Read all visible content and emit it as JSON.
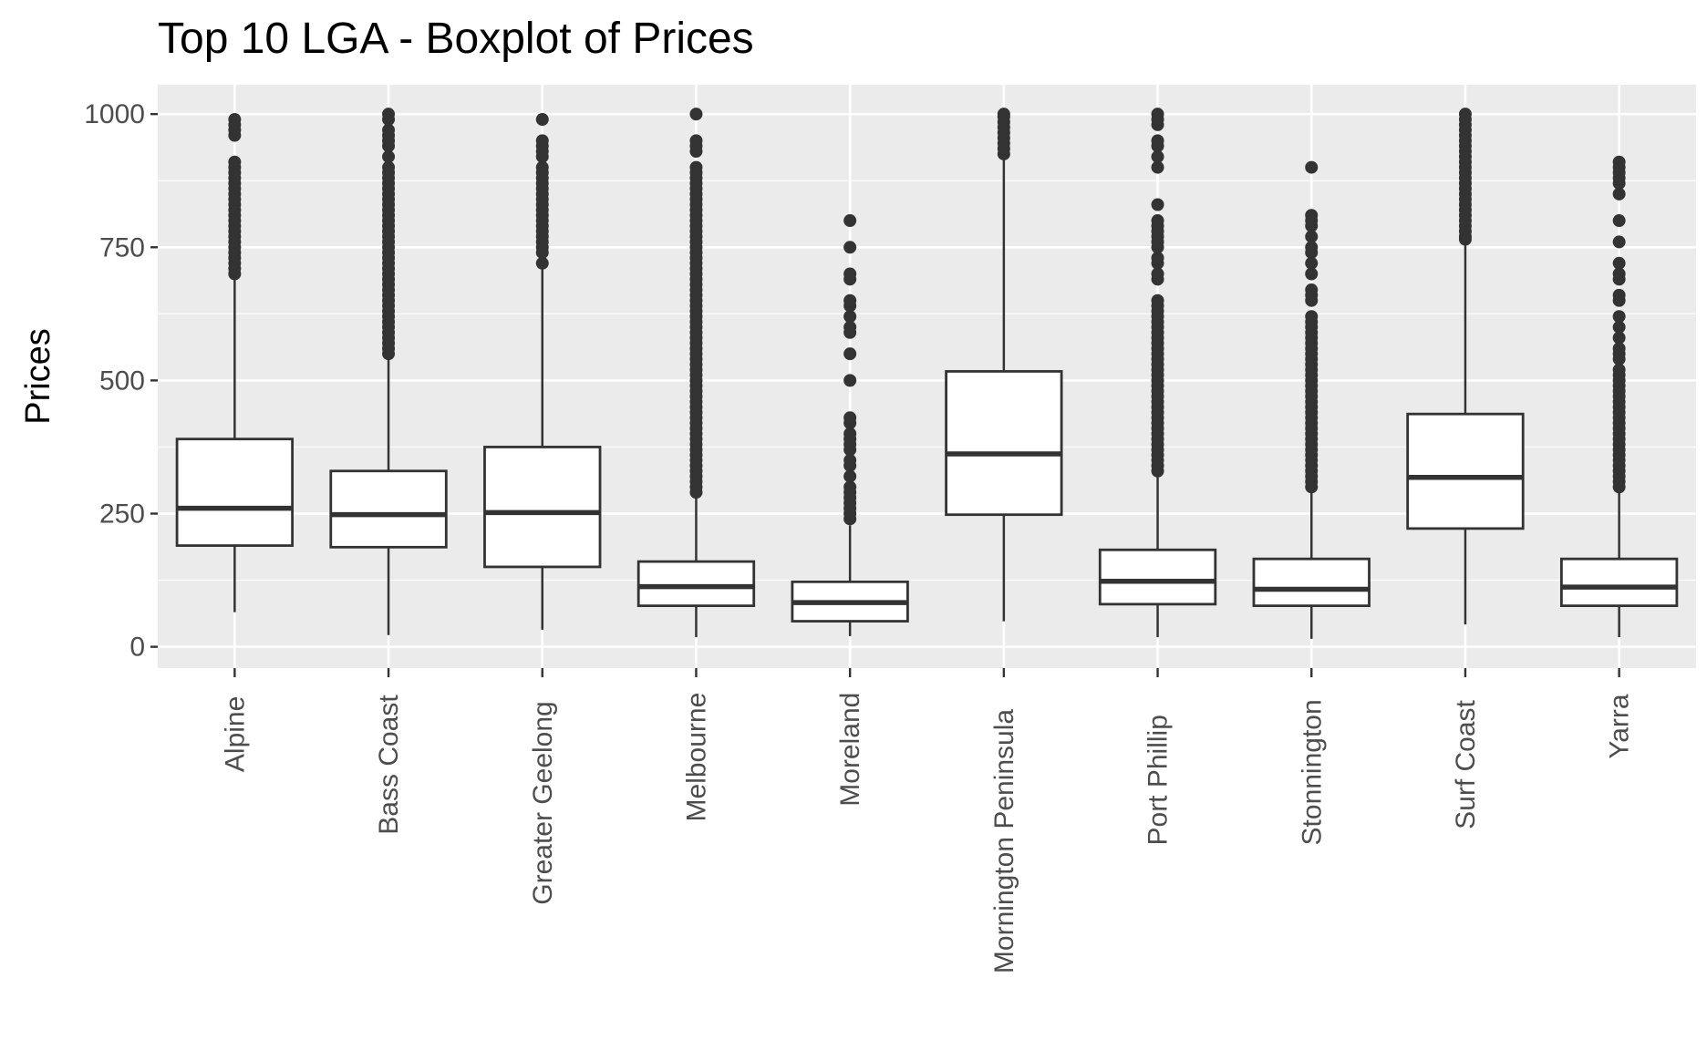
{
  "chart_data": {
    "type": "boxplot",
    "title": "Top 10 LGA - Boxplot of Prices",
    "xlabel": "",
    "ylabel": "Prices",
    "ylim": [
      -40,
      1055
    ],
    "yticks": [
      0,
      250,
      500,
      750,
      1000
    ],
    "ytick_labels": [
      "0",
      "250",
      "500",
      "750",
      "1000"
    ],
    "grid": true,
    "legend": "none",
    "colors": {
      "panel_background": "#ebebeb",
      "grid_major": "#ffffff",
      "box_fill": "#ffffff",
      "box_stroke": "#333333",
      "tick_label": "#4d4d4d"
    },
    "categories": [
      "Alpine",
      "Bass Coast",
      "Greater Geelong",
      "Melbourne",
      "Moreland",
      "Mornington Peninsula",
      "Port Phillip",
      "Stonnington",
      "Surf Coast",
      "Yarra"
    ],
    "boxes": [
      {
        "category": "Alpine",
        "whisker_low": 65,
        "q1": 190,
        "median": 260,
        "q3": 390,
        "whisker_high": 690,
        "outliers": [
          700,
          710,
          720,
          730,
          740,
          750,
          760,
          770,
          780,
          790,
          800,
          810,
          820,
          830,
          840,
          850,
          860,
          870,
          880,
          890,
          900,
          910,
          960,
          970,
          980,
          990
        ]
      },
      {
        "category": "Bass Coast",
        "whisker_low": 22,
        "q1": 187,
        "median": 248,
        "q3": 330,
        "whisker_high": 540,
        "outliers": [
          550,
          560,
          570,
          580,
          590,
          600,
          610,
          620,
          630,
          640,
          650,
          660,
          670,
          680,
          690,
          700,
          710,
          720,
          730,
          740,
          750,
          760,
          770,
          780,
          790,
          800,
          810,
          820,
          830,
          840,
          850,
          860,
          870,
          880,
          890,
          900,
          920,
          940,
          950,
          960,
          970,
          990,
          1000
        ]
      },
      {
        "category": "Greater Geelong",
        "whisker_low": 32,
        "q1": 150,
        "median": 252,
        "q3": 375,
        "whisker_high": 710,
        "outliers": [
          720,
          740,
          750,
          760,
          770,
          780,
          790,
          800,
          810,
          820,
          830,
          840,
          850,
          860,
          870,
          880,
          890,
          900,
          920,
          930,
          940,
          950,
          990
        ]
      },
      {
        "category": "Melbourne",
        "whisker_low": 18,
        "q1": 77,
        "median": 113,
        "q3": 160,
        "whisker_high": 285,
        "outliers": [
          290,
          300,
          310,
          320,
          330,
          340,
          350,
          360,
          370,
          380,
          390,
          400,
          410,
          420,
          430,
          440,
          450,
          460,
          470,
          480,
          490,
          500,
          510,
          520,
          530,
          540,
          550,
          560,
          570,
          580,
          590,
          600,
          610,
          620,
          630,
          640,
          650,
          660,
          670,
          680,
          690,
          700,
          710,
          720,
          730,
          740,
          750,
          760,
          770,
          780,
          790,
          800,
          810,
          820,
          830,
          840,
          850,
          860,
          870,
          880,
          890,
          900,
          930,
          940,
          950,
          1000
        ]
      },
      {
        "category": "Moreland",
        "whisker_low": 20,
        "q1": 48,
        "median": 83,
        "q3": 122,
        "whisker_high": 228,
        "outliers": [
          240,
          250,
          260,
          270,
          280,
          290,
          300,
          320,
          340,
          350,
          370,
          380,
          390,
          400,
          420,
          430,
          500,
          550,
          590,
          600,
          620,
          640,
          650,
          690,
          700,
          750,
          800
        ]
      },
      {
        "category": "Mornington Peninsula",
        "whisker_low": 48,
        "q1": 248,
        "median": 362,
        "q3": 517,
        "whisker_high": 918,
        "outliers": [
          925,
          935,
          945,
          955,
          965,
          975,
          985,
          995,
          1000
        ]
      },
      {
        "category": "Port Phillip",
        "whisker_low": 18,
        "q1": 80,
        "median": 123,
        "q3": 182,
        "whisker_high": 325,
        "outliers": [
          330,
          340,
          350,
          360,
          370,
          380,
          390,
          400,
          410,
          420,
          430,
          440,
          450,
          460,
          470,
          480,
          490,
          500,
          510,
          520,
          530,
          540,
          550,
          560,
          570,
          580,
          590,
          600,
          610,
          620,
          630,
          640,
          650,
          690,
          700,
          720,
          730,
          750,
          760,
          770,
          780,
          790,
          800,
          830,
          900,
          920,
          940,
          950,
          980,
          990,
          1000
        ]
      },
      {
        "category": "Stonnington",
        "whisker_low": 15,
        "q1": 77,
        "median": 108,
        "q3": 165,
        "whisker_high": 290,
        "outliers": [
          300,
          310,
          320,
          330,
          340,
          350,
          360,
          370,
          380,
          390,
          400,
          410,
          420,
          430,
          440,
          450,
          460,
          470,
          480,
          490,
          500,
          510,
          520,
          530,
          540,
          550,
          560,
          570,
          580,
          590,
          600,
          610,
          620,
          650,
          660,
          670,
          700,
          720,
          740,
          750,
          770,
          790,
          800,
          810,
          900
        ]
      },
      {
        "category": "Surf Coast",
        "whisker_low": 42,
        "q1": 222,
        "median": 318,
        "q3": 437,
        "whisker_high": 760,
        "outliers": [
          765,
          770,
          780,
          790,
          800,
          810,
          820,
          830,
          840,
          850,
          860,
          870,
          880,
          890,
          900,
          910,
          920,
          930,
          940,
          950,
          960,
          970,
          980,
          990,
          1000
        ]
      },
      {
        "category": "Yarra",
        "whisker_low": 18,
        "q1": 77,
        "median": 112,
        "q3": 165,
        "whisker_high": 295,
        "outliers": [
          300,
          310,
          320,
          330,
          340,
          350,
          360,
          370,
          380,
          390,
          400,
          410,
          420,
          430,
          440,
          450,
          460,
          470,
          480,
          490,
          500,
          510,
          520,
          540,
          550,
          560,
          580,
          600,
          620,
          650,
          660,
          690,
          700,
          720,
          760,
          800,
          850,
          870,
          880,
          890,
          900,
          910
        ]
      }
    ]
  }
}
